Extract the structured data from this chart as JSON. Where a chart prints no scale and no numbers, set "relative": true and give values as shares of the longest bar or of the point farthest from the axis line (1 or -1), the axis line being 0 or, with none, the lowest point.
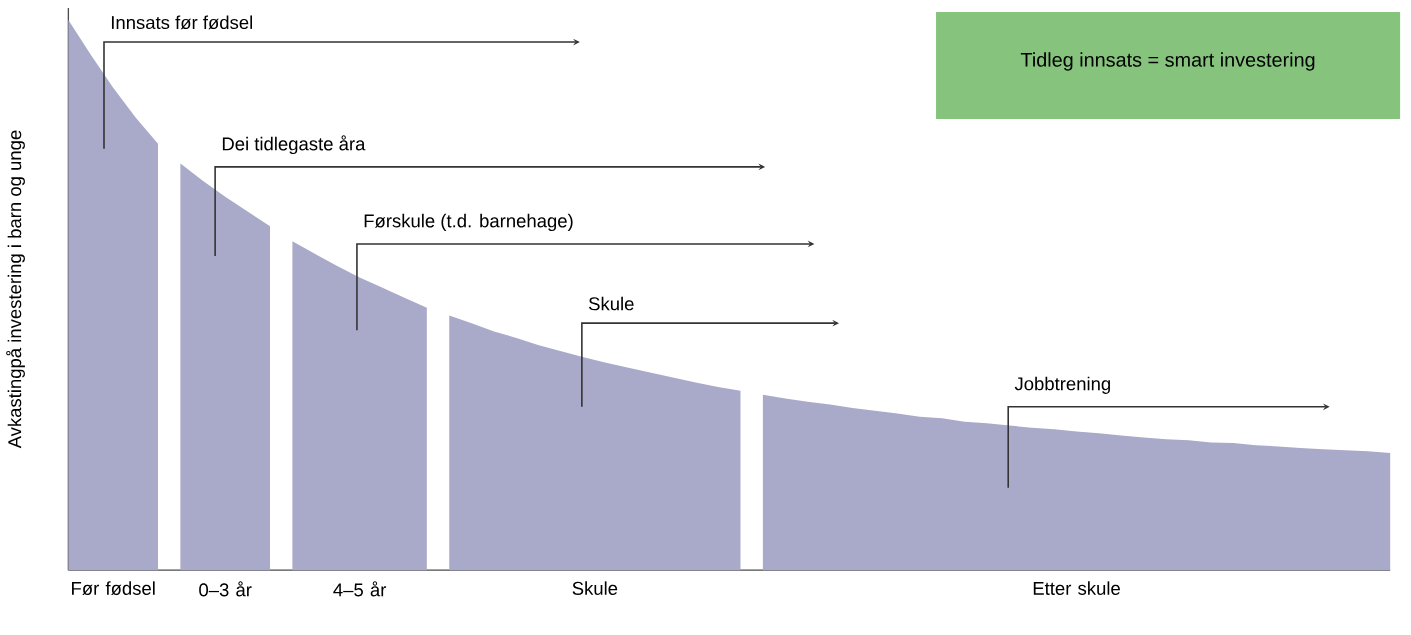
{
  "chart_data": {
    "type": "area",
    "relative": true,
    "ylabel": "Avkastingpå investering i barn og unge",
    "categories": [
      null,
      null,
      null,
      null,
      null,
      null,
      null,
      null,
      null,
      null,
      null,
      null,
      null,
      null,
      null,
      null,
      null,
      null,
      null,
      null,
      null,
      null,
      null,
      null,
      null,
      null,
      null,
      null,
      null,
      null,
      null,
      null,
      null,
      null,
      null,
      null,
      null,
      null,
      null,
      null,
      null,
      null,
      null,
      null,
      null,
      null,
      null,
      null,
      null,
      null,
      null,
      null,
      null,
      null,
      null,
      null,
      null,
      null,
      null,
      null
    ],
    "series": [
      {
        "name": "Før fødsel",
        "color": "#a9a9c9",
        "values": [
          1.0,
          0.937,
          0.877,
          0.823,
          0.775,
          null,
          null,
          null,
          null,
          null,
          null,
          null,
          null,
          null,
          null,
          null,
          null,
          null,
          null,
          null,
          null,
          null,
          null,
          null,
          null,
          null,
          null,
          null,
          null,
          null,
          null,
          null,
          null,
          null,
          null,
          null,
          null,
          null,
          null,
          null,
          null,
          null,
          null,
          null,
          null,
          null,
          null,
          null,
          null,
          null,
          null,
          null,
          null,
          null,
          null,
          null,
          null,
          null,
          null,
          null
        ]
      },
      {
        "name": "0–3 år",
        "color": "#a9a9c9",
        "values": [
          null,
          null,
          null,
          null,
          null,
          0.739,
          0.708,
          0.679,
          0.652,
          0.625,
          null,
          null,
          null,
          null,
          null,
          null,
          null,
          null,
          null,
          null,
          null,
          null,
          null,
          null,
          null,
          null,
          null,
          null,
          null,
          null,
          null,
          null,
          null,
          null,
          null,
          null,
          null,
          null,
          null,
          null,
          null,
          null,
          null,
          null,
          null,
          null,
          null,
          null,
          null,
          null,
          null,
          null,
          null,
          null,
          null,
          null,
          null,
          null,
          null,
          null
        ]
      },
      {
        "name": "4–5 år",
        "color": "#a9a9c9",
        "values": [
          null,
          null,
          null,
          null,
          null,
          null,
          null,
          null,
          null,
          null,
          0.598,
          0.575,
          0.553,
          0.532,
          0.514,
          0.495,
          0.477,
          null,
          null,
          null,
          null,
          null,
          null,
          null,
          null,
          null,
          null,
          null,
          null,
          null,
          null,
          null,
          null,
          null,
          null,
          null,
          null,
          null,
          null,
          null,
          null,
          null,
          null,
          null,
          null,
          null,
          null,
          null,
          null,
          null,
          null,
          null,
          null,
          null,
          null,
          null,
          null,
          null,
          null,
          null
        ]
      },
      {
        "name": "Skule",
        "color": "#a9a9c9",
        "values": [
          null,
          null,
          null,
          null,
          null,
          null,
          null,
          null,
          null,
          null,
          null,
          null,
          null,
          null,
          null,
          null,
          null,
          0.463,
          0.449,
          0.434,
          0.422,
          0.409,
          0.398,
          0.387,
          0.377,
          0.368,
          0.359,
          0.35,
          0.341,
          0.333,
          0.326,
          null,
          null,
          null,
          null,
          null,
          null,
          null,
          null,
          null,
          null,
          null,
          null,
          null,
          null,
          null,
          null,
          null,
          null,
          null,
          null,
          null,
          null,
          null,
          null,
          null,
          null,
          null,
          null,
          null
        ]
      },
      {
        "name": "Etter skule",
        "color": "#a9a9c9",
        "values": [
          null,
          null,
          null,
          null,
          null,
          null,
          null,
          null,
          null,
          null,
          null,
          null,
          null,
          null,
          null,
          null,
          null,
          null,
          null,
          null,
          null,
          null,
          null,
          null,
          null,
          null,
          null,
          null,
          null,
          null,
          null,
          0.319,
          0.312,
          0.306,
          0.301,
          0.295,
          0.29,
          0.285,
          0.279,
          0.276,
          0.27,
          0.267,
          0.263,
          0.259,
          0.256,
          0.252,
          0.249,
          0.245,
          0.241,
          0.238,
          0.236,
          0.232,
          0.231,
          0.227,
          0.225,
          0.222,
          0.22,
          0.218,
          0.216,
          0.213
        ]
      }
    ],
    "annotations": [
      "Innsats før fødsel",
      "Dei tidlegaste åra",
      "Førskule (t.d. barnehage)",
      "Skule",
      "Jobbtrening",
      "Tidleg innsats = smart investering"
    ]
  }
}
